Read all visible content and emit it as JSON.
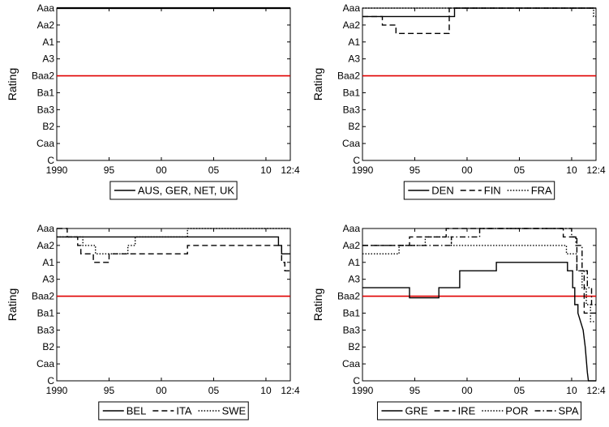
{
  "chart_data": [
    {
      "type": "line",
      "ylabel": "Rating",
      "yticks": [
        "Aaa",
        "Aa2",
        "A1",
        "A3",
        "Baa2",
        "Ba1",
        "Ba3",
        "B2",
        "Caa",
        "C"
      ],
      "xticks": [
        "1990",
        "95",
        "00",
        "05",
        "10",
        "12:4"
      ],
      "xlim": [
        1990,
        2012.33
      ],
      "ylim": [
        "Aaa",
        "C"
      ],
      "threshold": {
        "level": "Baa2",
        "color": "#e00000"
      },
      "series": [
        {
          "name": "AUS, GER, NET, UK",
          "style": "solid",
          "x": [
            1990,
            2012.33
          ],
          "y": [
            0,
            0
          ]
        }
      ],
      "legend_position": "below"
    },
    {
      "type": "line",
      "ylabel": "Rating",
      "yticks": [
        "Aaa",
        "Aa2",
        "A1",
        "A3",
        "Baa2",
        "Ba1",
        "Ba3",
        "B2",
        "Caa",
        "C"
      ],
      "xticks": [
        "1990",
        "95",
        "00",
        "05",
        "10",
        "12:4"
      ],
      "xlim": [
        1990,
        2012.33
      ],
      "ylim": [
        "Aaa",
        "C"
      ],
      "threshold": {
        "level": "Baa2",
        "color": "#e00000"
      },
      "series": [
        {
          "name": "DEN",
          "style": "solid",
          "x": [
            1990,
            1998.8,
            1998.8,
            2012.33
          ],
          "y": [
            0.5,
            0.5,
            0,
            0
          ]
        },
        {
          "name": "FIN",
          "style": "dashed",
          "x": [
            1990,
            1991.9,
            1991.9,
            1993.2,
            1993.2,
            1998.3,
            1998.3,
            2012.33
          ],
          "y": [
            0.5,
            0.5,
            1,
            1,
            1.5,
            1.5,
            0,
            0
          ]
        },
        {
          "name": "FRA",
          "style": "dotted",
          "x": [
            1990,
            2012.1,
            2012.1,
            2012.33
          ],
          "y": [
            0,
            0,
            0.5,
            0.5
          ]
        }
      ],
      "legend_position": "below"
    },
    {
      "type": "line",
      "ylabel": "Rating",
      "yticks": [
        "Aaa",
        "Aa2",
        "A1",
        "A3",
        "Baa2",
        "Ba1",
        "Ba3",
        "B2",
        "Caa",
        "C"
      ],
      "xticks": [
        "1990",
        "95",
        "00",
        "05",
        "10",
        "12:4"
      ],
      "xlim": [
        1990,
        2012.33
      ],
      "ylim": [
        "Aaa",
        "C"
      ],
      "threshold": {
        "level": "Baa2",
        "color": "#e00000"
      },
      "series": [
        {
          "name": "BEL",
          "style": "solid",
          "x": [
            1990,
            1990.5,
            1990.5,
            2011.2,
            2011.2,
            2011.5,
            2011.5,
            2012.33
          ],
          "y": [
            0.5,
            0.5,
            0.5,
            0.5,
            1,
            1,
            1.5,
            1.5
          ]
        },
        {
          "name": "ITA",
          "style": "dashed",
          "x": [
            1990,
            1991,
            1991,
            1992,
            1992,
            1992.3,
            1992.3,
            1993.5,
            1993.5,
            1995,
            1995,
            1996.7,
            1996.7,
            2002.5,
            2002.5,
            2011.5,
            2011.5,
            2011.8,
            2011.8,
            2012.33
          ],
          "y": [
            0,
            0,
            0.5,
            0.5,
            1,
            1,
            1.5,
            1.5,
            2,
            2,
            1.5,
            1.5,
            1.5,
            1.5,
            1,
            1,
            2,
            2,
            2.5,
            2.5
          ]
        },
        {
          "name": "SWE",
          "style": "dotted",
          "x": [
            1990,
            1991.7,
            1991.7,
            1992.5,
            1992.5,
            1993.7,
            1993.7,
            1996.8,
            1996.8,
            1997.5,
            1997.5,
            2002.5,
            2002.5,
            2012.33
          ],
          "y": [
            0.5,
            0.5,
            0.5,
            0.5,
            1,
            1,
            1.5,
            1.5,
            1,
            1,
            0.5,
            0.5,
            0,
            0
          ]
        }
      ],
      "legend_position": "below"
    },
    {
      "type": "line",
      "ylabel": "Rating",
      "yticks": [
        "Aaa",
        "Aa2",
        "A1",
        "A3",
        "Baa2",
        "Ba1",
        "Ba3",
        "B2",
        "Caa",
        "C"
      ],
      "xticks": [
        "1990",
        "95",
        "00",
        "05",
        "10",
        "12:4"
      ],
      "xlim": [
        1990,
        2012.33
      ],
      "ylim": [
        "Aaa",
        "C"
      ],
      "threshold": {
        "level": "Baa2",
        "color": "#e00000"
      },
      "series": [
        {
          "name": "GRE",
          "style": "solid",
          "x": [
            1990,
            1994.5,
            1994.5,
            1997.3,
            1997.3,
            1999.3,
            1999.3,
            2002.8,
            2002.8,
            2009.6,
            2009.6,
            2010.1,
            2010.1,
            2010.3,
            2010.3,
            2010.6,
            2010.6,
            2011.1,
            2011.3,
            2011.5,
            2011.6,
            2012.33
          ],
          "y": [
            3.5,
            3.5,
            4.1,
            4.1,
            3.5,
            3.5,
            2.5,
            2.5,
            2,
            2,
            2.5,
            2.5,
            3.5,
            3.5,
            4.5,
            4.5,
            5,
            6,
            7,
            8.5,
            9,
            9
          ]
        },
        {
          "name": "IRE",
          "style": "dashed",
          "x": [
            1990,
            1992.7,
            1992.7,
            1994.5,
            1994.5,
            1996.5,
            1996.5,
            1998,
            1998,
            2009.2,
            2009.2,
            2010.5,
            2010.5,
            2011.2,
            2011.2,
            2012.33
          ],
          "y": [
            1,
            1,
            1,
            1,
            0.5,
            0.5,
            0.5,
            0.5,
            0,
            0,
            0.5,
            0.5,
            2.5,
            2.5,
            5,
            5
          ]
        },
        {
          "name": "POR",
          "style": "dotted",
          "x": [
            1990,
            1993.5,
            1993.5,
            1996,
            1996,
            1998.5,
            1998.5,
            2009.5,
            2009.5,
            2010.5,
            2010.5,
            2011,
            2011,
            2011.4,
            2011.4,
            2011.8,
            2011.8,
            2012.33
          ],
          "y": [
            1.5,
            1.5,
            1,
            1,
            0.5,
            0.5,
            1,
            1,
            1.5,
            1.5,
            2.5,
            2.5,
            3.5,
            3.5,
            4.5,
            4.5,
            5.5,
            5.5
          ]
        },
        {
          "name": "SPA",
          "style": "dashdot",
          "x": [
            1990,
            1998.5,
            1998.5,
            2001.2,
            2001.2,
            2010,
            2010,
            2010.4,
            2010.4,
            2011,
            2011,
            2011.5,
            2011.5,
            2011.9,
            2011.9,
            2012.33
          ],
          "y": [
            1,
            1,
            0.5,
            0.5,
            0,
            0,
            0.5,
            0.5,
            1,
            1,
            2.5,
            2.5,
            3.5,
            3.5,
            4.5,
            4.5
          ]
        }
      ],
      "legend_position": "below"
    }
  ]
}
